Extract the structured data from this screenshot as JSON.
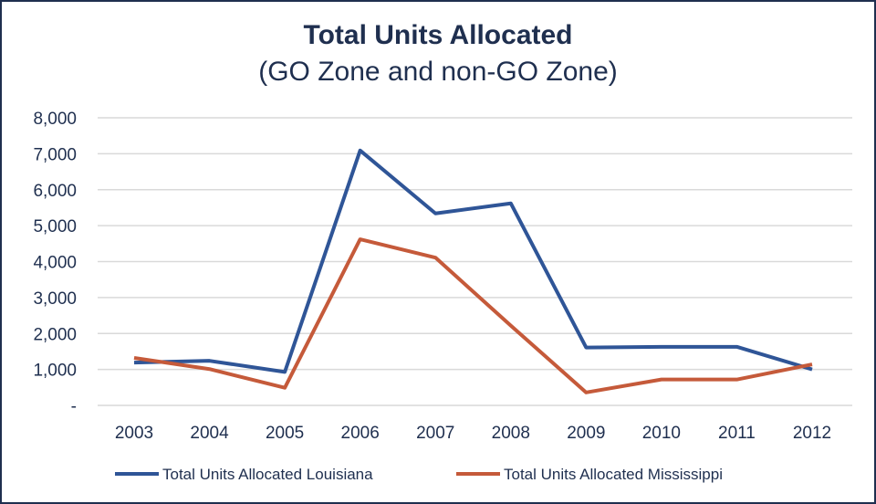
{
  "chart_data": {
    "type": "line",
    "title": "Total Units Allocated",
    "subtitle": "(GO Zone and non-GO Zone)",
    "categories": [
      "2003",
      "2004",
      "2005",
      "2006",
      "2007",
      "2008",
      "2009",
      "2010",
      "2011",
      "2012"
    ],
    "ylim": [
      0,
      8000
    ],
    "yticks": [
      0,
      1000,
      2000,
      3000,
      4000,
      5000,
      6000,
      7000,
      8000
    ],
    "ytick_labels": [
      "-",
      "1,000",
      "2,000",
      "3,000",
      "4,000",
      "5,000",
      "6,000",
      "7,000",
      "8,000"
    ],
    "grid": true,
    "legend": "bottom",
    "series": [
      {
        "name": "Total Units Allocated Louisiana",
        "color": "#2f5597",
        "values": [
          1190,
          1240,
          930,
          7090,
          5340,
          5620,
          1610,
          1630,
          1630,
          1000
        ]
      },
      {
        "name": "Total Units Allocated Mississippi",
        "color": "#c55a3a",
        "values": [
          1320,
          1010,
          490,
          4620,
          4110,
          2220,
          360,
          720,
          720,
          1140
        ]
      }
    ]
  }
}
